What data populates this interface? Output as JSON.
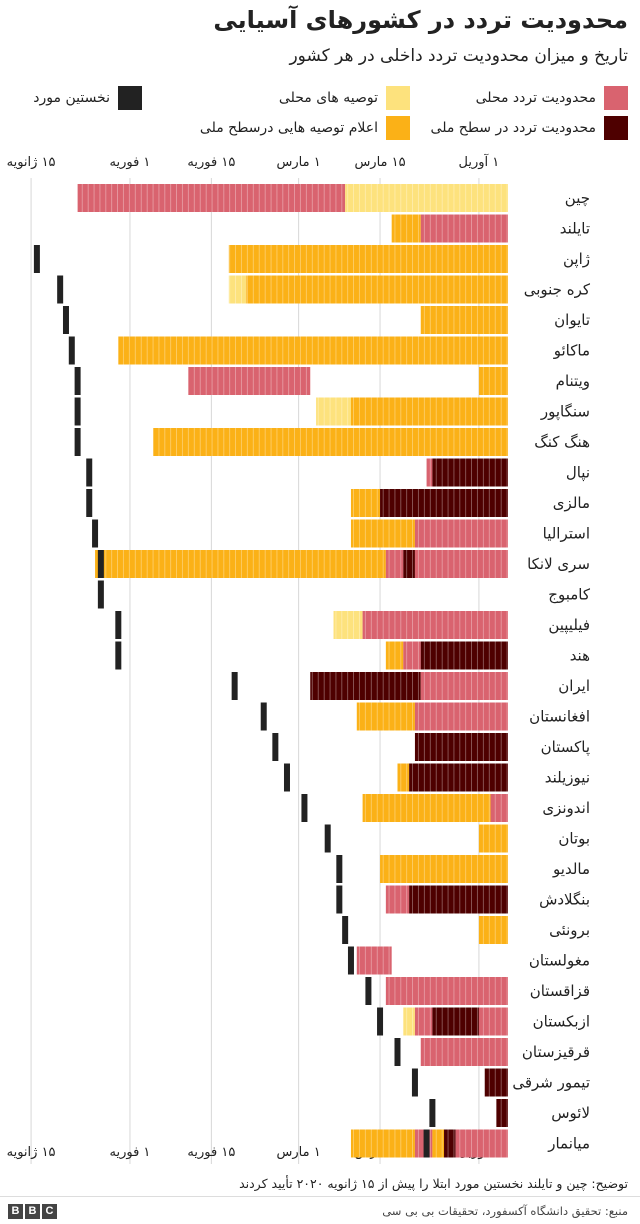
{
  "header": {
    "title": "محدودیت تردد در کشورهای آسیایی",
    "subtitle": "تاریخ و میزان محدودیت تردد داخلی در هر کشور"
  },
  "legend": {
    "local_restriction": "محدودیت تردد محلی",
    "local_recommendation": "توصیه های محلی",
    "first_case": "نخستین مورد",
    "national_restriction": "محدودیت تردد در سطح ملی",
    "national_recommendation": "اعلام توصیه هایی درسطح ملی"
  },
  "colors": {
    "local_restriction": "#d9636f",
    "local_recommendation": "#fde27d",
    "national_restriction": "#4e0000",
    "national_recommendation": "#fbb117",
    "first_case": "#222222",
    "grid": "#d8d8d8"
  },
  "footer": {
    "note": "توضیح: چین و تایلند نخستین مورد ابتلا را پیش از ۱۵ ژانویه ۲۰۲۰ تأیید کردند",
    "source": "منبع: تحقیق دانشگاه آکسفورد، تحقیقات بی بی سی",
    "logo": [
      "B",
      "B",
      "C"
    ]
  },
  "chart_data": {
    "type": "timeline",
    "x_unit": "day of 2020",
    "x_range": [
      "2020-01-10",
      "2020-04-06"
    ],
    "ticks": [
      {
        "date": "2020-01-15",
        "label": "۱۵ ژانویه"
      },
      {
        "date": "2020-02-01",
        "label": "۱ فوریه"
      },
      {
        "date": "2020-02-15",
        "label": "۱۵ فوریه"
      },
      {
        "date": "2020-03-01",
        "label": "۱ مارس"
      },
      {
        "date": "2020-03-15",
        "label": "۱۵ مارس"
      },
      {
        "date": "2020-04-01",
        "label": "۱ آوریل"
      }
    ],
    "categories": [
      "local_restriction",
      "local_recommendation",
      "national_restriction",
      "national_recommendation"
    ],
    "countries": [
      {
        "name": "چین",
        "first_case": null,
        "segments": [
          [
            "2020-01-23",
            "2020-03-09",
            "local_restriction"
          ],
          [
            "2020-03-09",
            "2020-04-06",
            "local_recommendation"
          ]
        ]
      },
      {
        "name": "تایلند",
        "first_case": null,
        "segments": [
          [
            "2020-03-17",
            "2020-03-22",
            "national_recommendation"
          ],
          [
            "2020-03-22",
            "2020-04-06",
            "local_restriction"
          ]
        ]
      },
      {
        "name": "ژاپن",
        "first_case": "2020-01-16",
        "segments": [
          [
            "2020-02-18",
            "2020-04-06",
            "national_recommendation"
          ]
        ]
      },
      {
        "name": "کره جنوبی",
        "first_case": "2020-01-20",
        "segments": [
          [
            "2020-02-18",
            "2020-02-21",
            "local_recommendation"
          ],
          [
            "2020-02-21",
            "2020-04-06",
            "national_recommendation"
          ]
        ]
      },
      {
        "name": "تایوان",
        "first_case": "2020-01-21",
        "segments": [
          [
            "2020-03-22",
            "2020-04-06",
            "national_recommendation"
          ]
        ]
      },
      {
        "name": "ماکائو",
        "first_case": "2020-01-22",
        "segments": [
          [
            "2020-01-30",
            "2020-04-06",
            "national_recommendation"
          ]
        ]
      },
      {
        "name": "ویتنام",
        "first_case": "2020-01-23",
        "segments": [
          [
            "2020-02-11",
            "2020-03-03",
            "local_restriction"
          ],
          [
            "2020-04-01",
            "2020-04-06",
            "national_recommendation"
          ]
        ]
      },
      {
        "name": "سنگاپور",
        "first_case": "2020-01-23",
        "segments": [
          [
            "2020-03-04",
            "2020-03-10",
            "local_recommendation"
          ],
          [
            "2020-03-10",
            "2020-04-06",
            "national_recommendation"
          ]
        ]
      },
      {
        "name": "هنگ کنگ",
        "first_case": "2020-01-23",
        "segments": [
          [
            "2020-02-05",
            "2020-04-06",
            "national_recommendation"
          ]
        ]
      },
      {
        "name": "نپال",
        "first_case": "2020-01-25",
        "segments": [
          [
            "2020-03-23",
            "2020-03-24",
            "local_restriction"
          ],
          [
            "2020-03-24",
            "2020-04-06",
            "national_restriction"
          ]
        ]
      },
      {
        "name": "مالزی",
        "first_case": "2020-01-25",
        "segments": [
          [
            "2020-03-10",
            "2020-03-15",
            "national_recommendation"
          ],
          [
            "2020-03-15",
            "2020-04-06",
            "national_restriction"
          ]
        ]
      },
      {
        "name": "استرالیا",
        "first_case": "2020-01-26",
        "segments": [
          [
            "2020-03-10",
            "2020-03-21",
            "national_recommendation"
          ],
          [
            "2020-03-21",
            "2020-04-06",
            "local_restriction"
          ]
        ]
      },
      {
        "name": "سری لانکا",
        "first_case": "2020-01-27",
        "segments": [
          [
            "2020-01-26",
            "2020-03-16",
            "national_recommendation"
          ],
          [
            "2020-03-16",
            "2020-03-19",
            "local_restriction"
          ],
          [
            "2020-03-19",
            "2020-03-21",
            "national_restriction"
          ],
          [
            "2020-03-21",
            "2020-04-06",
            "local_restriction"
          ]
        ]
      },
      {
        "name": "کامبوج",
        "first_case": "2020-01-27",
        "segments": []
      },
      {
        "name": "فیلیپین",
        "first_case": "2020-01-30",
        "segments": [
          [
            "2020-03-07",
            "2020-03-12",
            "local_recommendation"
          ],
          [
            "2020-03-12",
            "2020-04-06",
            "local_restriction"
          ]
        ]
      },
      {
        "name": "هند",
        "first_case": "2020-01-30",
        "segments": [
          [
            "2020-03-16",
            "2020-03-19",
            "national_recommendation"
          ],
          [
            "2020-03-19",
            "2020-03-22",
            "local_restriction"
          ],
          [
            "2020-03-22",
            "2020-04-06",
            "national_restriction"
          ]
        ]
      },
      {
        "name": "ایران",
        "first_case": "2020-02-19",
        "segments": [
          [
            "2020-03-03",
            "2020-03-22",
            "national_restriction"
          ],
          [
            "2020-03-22",
            "2020-04-06",
            "local_restriction"
          ]
        ]
      },
      {
        "name": "افغانستان",
        "first_case": "2020-02-24",
        "segments": [
          [
            "2020-03-11",
            "2020-03-21",
            "national_recommendation"
          ],
          [
            "2020-03-21",
            "2020-04-06",
            "local_restriction"
          ]
        ]
      },
      {
        "name": "پاکستان",
        "first_case": "2020-02-26",
        "segments": [
          [
            "2020-03-21",
            "2020-04-06",
            "national_restriction"
          ]
        ]
      },
      {
        "name": "نیوزیلند",
        "first_case": "2020-02-28",
        "segments": [
          [
            "2020-03-18",
            "2020-03-20",
            "national_recommendation"
          ],
          [
            "2020-03-20",
            "2020-04-06",
            "national_restriction"
          ]
        ]
      },
      {
        "name": "اندونزی",
        "first_case": "2020-03-02",
        "segments": [
          [
            "2020-03-12",
            "2020-04-03",
            "national_recommendation"
          ],
          [
            "2020-04-03",
            "2020-04-06",
            "local_restriction"
          ]
        ]
      },
      {
        "name": "بوتان",
        "first_case": "2020-03-06",
        "segments": [
          [
            "2020-04-01",
            "2020-04-06",
            "national_recommendation"
          ]
        ]
      },
      {
        "name": "مالدیو",
        "first_case": "2020-03-08",
        "segments": [
          [
            "2020-03-15",
            "2020-04-06",
            "national_recommendation"
          ]
        ]
      },
      {
        "name": "بنگلادش",
        "first_case": "2020-03-08",
        "segments": [
          [
            "2020-03-16",
            "2020-03-20",
            "local_restriction"
          ],
          [
            "2020-03-20",
            "2020-04-06",
            "national_restriction"
          ]
        ]
      },
      {
        "name": "برونئی",
        "first_case": "2020-03-09",
        "segments": [
          [
            "2020-04-01",
            "2020-04-06",
            "national_recommendation"
          ]
        ]
      },
      {
        "name": "مغولستان",
        "first_case": "2020-03-10",
        "segments": [
          [
            "2020-03-11",
            "2020-03-17",
            "local_restriction"
          ]
        ]
      },
      {
        "name": "قزاقستان",
        "first_case": "2020-03-13",
        "segments": [
          [
            "2020-03-16",
            "2020-04-06",
            "local_restriction"
          ]
        ]
      },
      {
        "name": "ازبکستان",
        "first_case": "2020-03-15",
        "segments": [
          [
            "2020-03-19",
            "2020-03-21",
            "local_recommendation"
          ],
          [
            "2020-03-21",
            "2020-03-24",
            "local_restriction"
          ],
          [
            "2020-03-24",
            "2020-04-01",
            "national_restriction"
          ],
          [
            "2020-04-01",
            "2020-04-06",
            "local_restriction"
          ]
        ]
      },
      {
        "name": "قرقیزستان",
        "first_case": "2020-03-18",
        "segments": [
          [
            "2020-03-22",
            "2020-04-06",
            "local_restriction"
          ]
        ]
      },
      {
        "name": "تیمور شرقی",
        "first_case": "2020-03-21",
        "segments": [
          [
            "2020-04-02",
            "2020-04-06",
            "national_restriction"
          ]
        ]
      },
      {
        "name": "لائوس",
        "first_case": "2020-03-24",
        "segments": [
          [
            "2020-04-04",
            "2020-04-06",
            "national_restriction"
          ]
        ]
      },
      {
        "name": "میانمار",
        "first_case": "2020-03-23",
        "segments": [
          [
            "2020-03-10",
            "2020-03-21",
            "national_recommendation"
          ],
          [
            "2020-03-21",
            "2020-03-24",
            "local_restriction"
          ],
          [
            "2020-03-24",
            "2020-03-26",
            "national_recommendation"
          ],
          [
            "2020-03-26",
            "2020-03-28",
            "national_restriction"
          ],
          [
            "2020-03-28",
            "2020-04-06",
            "local_restriction"
          ]
        ]
      }
    ]
  }
}
